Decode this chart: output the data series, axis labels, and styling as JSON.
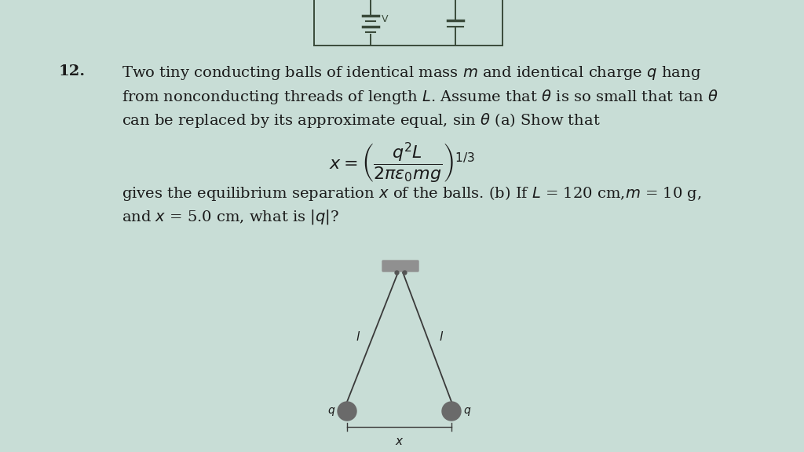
{
  "bg_color": "#c8ddd6",
  "text_color": "#1a1a1a",
  "fig_width": 10.24,
  "fig_height": 5.76,
  "problem_number": "12.",
  "line1": "Two tiny conducting balls of identical mass $m$ and identical charge $q$ hang",
  "line2": "from nonconducting threads of length $L$. Assume that $\\theta$ is so small that tan $\\theta$",
  "line3": "can be replaced by its approximate equal, sin $\\theta$ (a) Show that",
  "formula": "$x = \\left(\\dfrac{q^2L}{2\\pi\\epsilon_0 mg}\\right)^{1/3}$",
  "line4": "gives the equilibrium separation $x$ of the balls. (b) If $L$ = 120 cm,$m$ = 10 g,",
  "line5": "and $x$ = 5.0 cm, what is $|q|$?",
  "thread_label": "$l$",
  "x_label": "$x$",
  "circuit_color": "#3a4a3a",
  "ball_color": "#6a6a6a",
  "thread_color": "#3a3a3a",
  "bar_color": "#909090"
}
